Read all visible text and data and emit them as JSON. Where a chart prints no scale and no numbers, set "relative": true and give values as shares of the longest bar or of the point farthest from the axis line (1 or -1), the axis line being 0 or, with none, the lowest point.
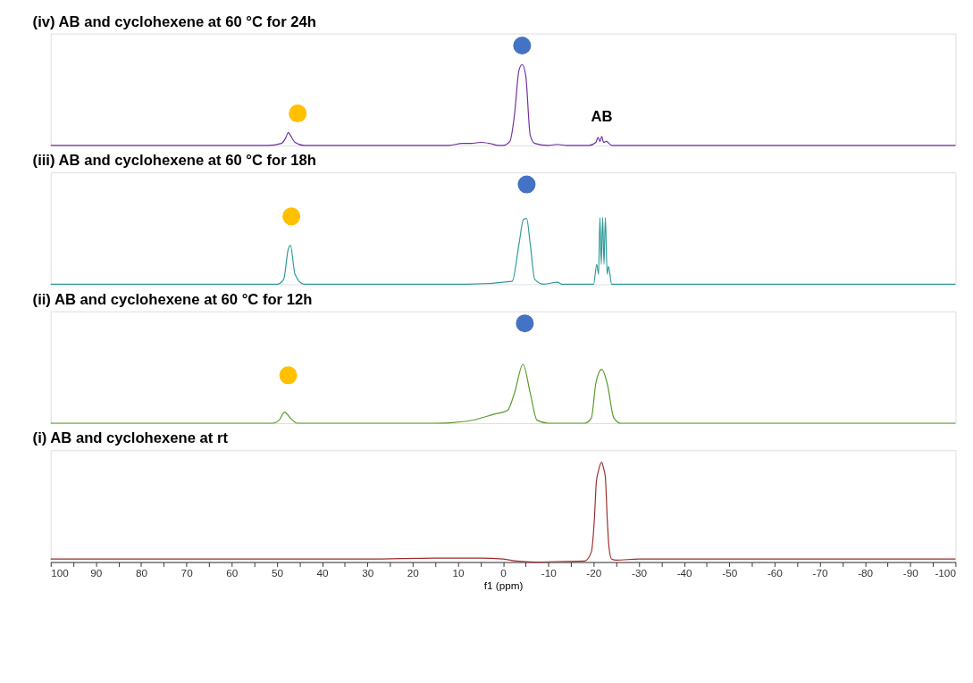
{
  "chart_data": [
    {
      "type": "line",
      "title": "(iv) AB and cyclohexene at 60 °C for 24h",
      "relative": true,
      "xlim": [
        100,
        -100
      ],
      "tick_labels": false,
      "annotations": [
        {
          "text": "AB",
          "x": -21.8,
          "y": 0.09
        }
      ],
      "series": [
        {
          "color": "#7030a0",
          "x": [
            100,
            52,
            49,
            48,
            47.5,
            47,
            46,
            44,
            12,
            9,
            7,
            5,
            3,
            1,
            0,
            -1.5,
            -2.5,
            -3.5,
            -4.2,
            -5,
            -6,
            -7,
            -10,
            -12,
            -14,
            -19,
            -20.5,
            -21,
            -21.4,
            -21.8,
            -22.2,
            -22.8,
            -24,
            -100
          ],
          "values": [
            0,
            0,
            0.02,
            0.08,
            0.13,
            0.1,
            0.03,
            0,
            0,
            0.02,
            0.02,
            0.03,
            0.02,
            0,
            0,
            0.04,
            0.3,
            0.75,
            0.81,
            0.7,
            0.1,
            0.02,
            0,
            0.01,
            0,
            0,
            0.03,
            0.08,
            0.04,
            0.09,
            0.03,
            0.04,
            0,
            0
          ]
        },
        {
          "type": "scatter",
          "marker": "circle",
          "color": "#ffc000",
          "x": [
            45.4
          ],
          "values": [
            0.32
          ]
        },
        {
          "type": "scatter",
          "marker": "circle",
          "color": "#4472c4",
          "x": [
            -4.2
          ],
          "values": [
            1.0
          ]
        }
      ]
    },
    {
      "type": "line",
      "title": "(iii) AB and cyclohexene at 60 °C for 18h",
      "relative": true,
      "xlim": [
        100,
        -100
      ],
      "tick_labels": false,
      "series": [
        {
          "color": "#2e9a9a",
          "x": [
            100,
            50,
            48.5,
            47.5,
            47,
            46,
            44,
            8,
            -2,
            -3.5,
            -4.5,
            -5.2,
            -6,
            -7,
            -9,
            -12,
            -13,
            -20,
            -20.7,
            -21.1,
            -21.4,
            -21.7,
            -22.0,
            -22.3,
            -22.6,
            -23,
            -23.3,
            -24,
            -100
          ],
          "values": [
            0,
            0,
            0.05,
            0.35,
            0.39,
            0.1,
            0,
            0,
            0.03,
            0.4,
            0.65,
            0.66,
            0.4,
            0.05,
            0,
            0.02,
            0,
            0,
            0.2,
            0.1,
            0.67,
            0.2,
            0.67,
            0.2,
            0.67,
            0.1,
            0.18,
            0,
            0
          ]
        },
        {
          "type": "scatter",
          "marker": "circle",
          "color": "#ffc000",
          "x": [
            46.8
          ],
          "values": [
            0.68
          ]
        },
        {
          "type": "scatter",
          "marker": "circle",
          "color": "#4472c4",
          "x": [
            -5.2
          ],
          "values": [
            1.0
          ]
        }
      ]
    },
    {
      "type": "line",
      "title": "(ii) AB and cyclohexene at 60 °C for 12h",
      "relative": true,
      "xlim": [
        100,
        -100
      ],
      "tick_labels": false,
      "series": [
        {
          "color": "#5a9a28",
          "x": [
            100,
            51,
            49.5,
            48.3,
            47,
            45.5,
            15,
            8,
            2,
            -1,
            -2.5,
            -4.4,
            -6,
            -7.5,
            -10,
            -18,
            -19.5,
            -20.5,
            -21.8,
            -23,
            -24.5,
            -26,
            -100
          ],
          "values": [
            0,
            0,
            0.03,
            0.11,
            0.05,
            0,
            0,
            0.02,
            0.09,
            0.13,
            0.3,
            0.59,
            0.3,
            0.03,
            0,
            0,
            0.05,
            0.4,
            0.54,
            0.4,
            0.05,
            0,
            0
          ]
        },
        {
          "type": "scatter",
          "marker": "circle",
          "color": "#ffc000",
          "x": [
            47.5
          ],
          "values": [
            0.48
          ]
        },
        {
          "type": "scatter",
          "marker": "circle",
          "color": "#4472c4",
          "x": [
            -4.8
          ],
          "values": [
            1.0
          ]
        }
      ]
    },
    {
      "type": "line",
      "title": "(i) AB  and cyclohexene at rt",
      "relative": true,
      "xlim": [
        100,
        -100
      ],
      "tick_labels": "x",
      "xlabel": "f1 (ppm)",
      "xticks": [
        100,
        {
          "value": 95,
          "label": null
        },
        90,
        {
          "value": 85,
          "label": null
        },
        80,
        {
          "value": 75,
          "label": null
        },
        70,
        {
          "value": 65,
          "label": null
        },
        60,
        {
          "value": 55,
          "label": null
        },
        50,
        {
          "value": 45,
          "label": null
        },
        40,
        {
          "value": 35,
          "label": null
        },
        30,
        {
          "value": 25,
          "label": null
        },
        20,
        {
          "value": 15,
          "label": null
        },
        10,
        {
          "value": 5,
          "label": null
        },
        0,
        {
          "value": -5,
          "label": null
        },
        -10,
        {
          "value": -15,
          "label": null
        },
        -20,
        {
          "value": -25,
          "label": null
        },
        -30,
        {
          "value": -35,
          "label": null
        },
        -40,
        {
          "value": -45,
          "label": null
        },
        -50,
        {
          "value": -55,
          "label": null
        },
        -60,
        {
          "value": -65,
          "label": null
        },
        -70,
        {
          "value": -75,
          "label": null
        },
        -80,
        {
          "value": -85,
          "label": null
        },
        -90,
        {
          "value": -95,
          "label": null
        },
        -100
      ],
      "series": [
        {
          "color": "#9b2d2d",
          "x": [
            100,
            30,
            15,
            5,
            0,
            -3,
            -7,
            -12,
            -18,
            -19.5,
            -20.2,
            -20.6,
            -21.0,
            -21.4,
            -21.8,
            -22.2,
            -22.6,
            -23.0,
            -23.4,
            -24.0,
            -25,
            -30,
            -100
          ],
          "values": [
            0.03,
            0.03,
            0.04,
            0.04,
            0.03,
            0.01,
            0,
            0.005,
            0.01,
            0.1,
            0.45,
            0.8,
            0.9,
            0.97,
            1.0,
            0.94,
            0.85,
            0.45,
            0.15,
            0.03,
            0.02,
            0.03,
            0.03
          ]
        }
      ]
    }
  ]
}
